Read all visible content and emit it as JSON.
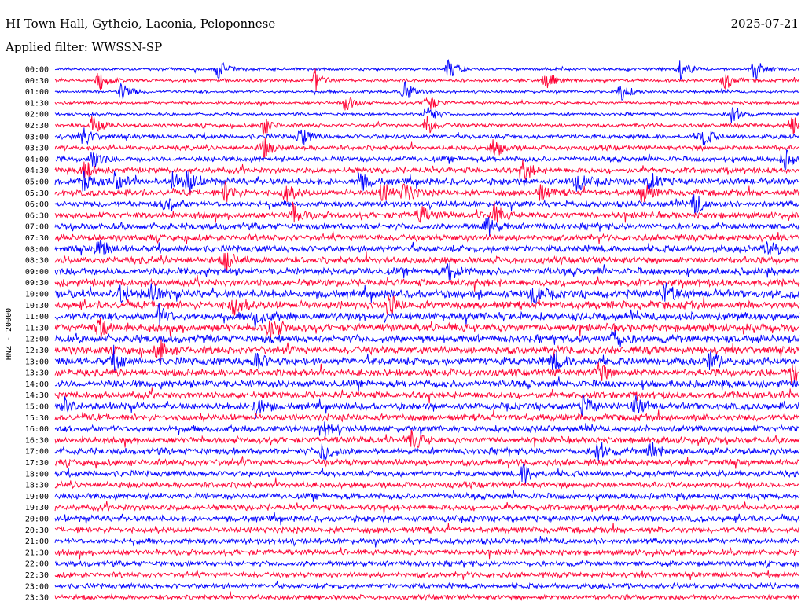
{
  "header": {
    "station": "HI Town Hall, Gytheio, Laconia, Peloponnese",
    "date": "2025-07-21",
    "filter_prefix": "Applied filter:",
    "filter_name": "WWSSN-SP"
  },
  "channel_label": "HNZ - 20000",
  "chart_data": {
    "type": "line",
    "title": "HI Town Hall, Gytheio, Laconia, Peloponnese",
    "subtitle": "Applied filter: WWSSN-SP",
    "date": "2025-07-21",
    "ylabel": "HNZ - 20000",
    "xlabel": "",
    "colors": [
      "#0000ff",
      "#ff0033"
    ],
    "rows": [
      {
        "time": "00:00",
        "level": 0.2,
        "events": [
          0.22,
          0.53,
          0.84,
          0.94
        ]
      },
      {
        "time": "00:30",
        "level": 0.22,
        "events": [
          0.06,
          0.35,
          0.66,
          0.9
        ]
      },
      {
        "time": "01:00",
        "level": 0.2,
        "events": [
          0.09,
          0.47,
          0.76
        ]
      },
      {
        "time": "01:30",
        "level": 0.2,
        "events": [
          0.39,
          0.5
        ]
      },
      {
        "time": "02:00",
        "level": 0.2,
        "events": [
          0.5,
          0.91
        ]
      },
      {
        "time": "02:30",
        "level": 0.3,
        "events": [
          0.05,
          0.28,
          0.5,
          0.99
        ]
      },
      {
        "time": "03:00",
        "level": 0.4,
        "events": [
          0.04,
          0.33,
          0.87
        ]
      },
      {
        "time": "03:30",
        "level": 0.45,
        "events": [
          0.28,
          0.59
        ]
      },
      {
        "time": "04:00",
        "level": 0.5,
        "events": [
          0.05,
          0.98
        ]
      },
      {
        "time": "04:30",
        "level": 0.55,
        "events": [
          0.04,
          0.63
        ]
      },
      {
        "time": "05:00",
        "level": 0.65,
        "events": [
          0.04,
          0.08,
          0.16,
          0.18,
          0.41,
          0.7,
          0.8
        ]
      },
      {
        "time": "05:30",
        "level": 0.6,
        "events": [
          0.23,
          0.31,
          0.44,
          0.47,
          0.65,
          0.79
        ]
      },
      {
        "time": "06:00",
        "level": 0.6,
        "events": [
          0.15,
          0.86
        ]
      },
      {
        "time": "06:30",
        "level": 0.65,
        "events": [
          0.32,
          0.49,
          0.59
        ]
      },
      {
        "time": "07:00",
        "level": 0.65,
        "events": [
          0.58
        ]
      },
      {
        "time": "07:30",
        "level": 0.65,
        "events": []
      },
      {
        "time": "08:00",
        "level": 0.7,
        "events": [
          0.06,
          0.96
        ]
      },
      {
        "time": "08:30",
        "level": 0.7,
        "events": [
          0.23
        ]
      },
      {
        "time": "09:00",
        "level": 0.75,
        "events": [
          0.53
        ]
      },
      {
        "time": "09:30",
        "level": 0.75,
        "events": []
      },
      {
        "time": "10:00",
        "level": 0.85,
        "events": [
          0.09,
          0.13,
          0.64,
          0.82
        ]
      },
      {
        "time": "10:30",
        "level": 0.8,
        "events": [
          0.24,
          0.45
        ]
      },
      {
        "time": "11:00",
        "level": 0.8,
        "events": [
          0.14,
          0.27
        ]
      },
      {
        "time": "11:30",
        "level": 0.8,
        "events": [
          0.06,
          0.29
        ]
      },
      {
        "time": "12:00",
        "level": 0.8,
        "events": [
          0.75
        ]
      },
      {
        "time": "12:30",
        "level": 0.8,
        "events": [
          0.14
        ]
      },
      {
        "time": "13:00",
        "level": 0.8,
        "events": [
          0.08,
          0.27,
          0.67,
          0.88
        ]
      },
      {
        "time": "13:30",
        "level": 0.75,
        "events": [
          0.73,
          0.99
        ]
      },
      {
        "time": "14:00",
        "level": 0.75,
        "events": []
      },
      {
        "time": "14:30",
        "level": 0.7,
        "events": []
      },
      {
        "time": "15:00",
        "level": 0.7,
        "events": [
          0.01,
          0.27,
          0.71,
          0.78
        ]
      },
      {
        "time": "15:30",
        "level": 0.7,
        "events": []
      },
      {
        "time": "16:00",
        "level": 0.65,
        "events": [
          0.36
        ]
      },
      {
        "time": "16:30",
        "level": 0.65,
        "events": [
          0.48
        ]
      },
      {
        "time": "17:00",
        "level": 0.65,
        "events": [
          0.36,
          0.73,
          0.8
        ]
      },
      {
        "time": "17:30",
        "level": 0.65,
        "events": []
      },
      {
        "time": "18:00",
        "level": 0.6,
        "events": [
          0.63
        ]
      },
      {
        "time": "18:30",
        "level": 0.6,
        "events": []
      },
      {
        "time": "19:00",
        "level": 0.6,
        "events": []
      },
      {
        "time": "19:30",
        "level": 0.6,
        "events": []
      },
      {
        "time": "20:00",
        "level": 0.6,
        "events": []
      },
      {
        "time": "20:30",
        "level": 0.6,
        "events": []
      },
      {
        "time": "21:00",
        "level": 0.55,
        "events": []
      },
      {
        "time": "21:30",
        "level": 0.55,
        "events": []
      },
      {
        "time": "22:00",
        "level": 0.5,
        "events": []
      },
      {
        "time": "22:30",
        "level": 0.5,
        "events": []
      },
      {
        "time": "23:00",
        "level": 0.5,
        "events": []
      },
      {
        "time": "23:30",
        "level": 0.45,
        "events": []
      }
    ]
  }
}
